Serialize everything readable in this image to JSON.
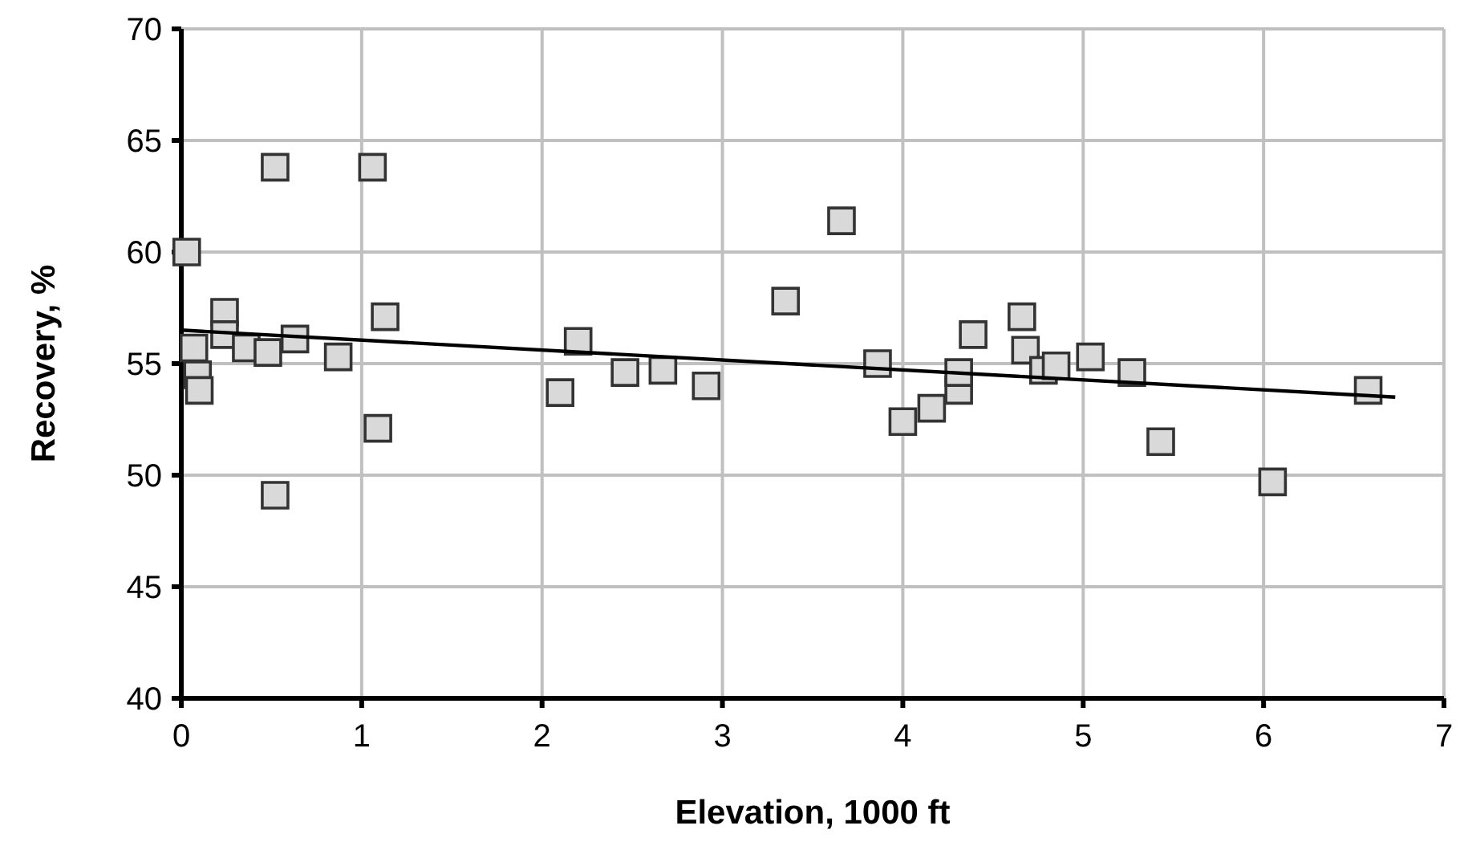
{
  "chart_data": {
    "type": "scatter",
    "xlabel": "Elevation, 1000 ft",
    "ylabel": "Recovery, %",
    "xlim": [
      0,
      7
    ],
    "xticks": [
      0,
      1,
      2,
      3,
      4,
      5,
      6,
      7
    ],
    "ylim": [
      40,
      70
    ],
    "yticks": [
      40,
      45,
      50,
      55,
      60,
      65,
      70
    ],
    "grid": true,
    "marker": "square",
    "series": [
      {
        "color": "#d9d9d9",
        "x": [
          0.03,
          0.07,
          0.09,
          0.1,
          0.24,
          0.24,
          0.36,
          0.48,
          0.52,
          0.52,
          0.63,
          0.87,
          1.06,
          1.09,
          1.13,
          2.1,
          2.2,
          2.46,
          2.67,
          2.91,
          3.35,
          3.66,
          3.86,
          4.0,
          4.16,
          4.31,
          4.31,
          4.39,
          4.66,
          4.68,
          4.78,
          4.85,
          5.04,
          5.27,
          5.43,
          6.05,
          6.58
        ],
        "values": [
          60.0,
          55.7,
          54.5,
          53.8,
          57.3,
          56.3,
          55.7,
          55.5,
          63.8,
          49.1,
          56.1,
          55.3,
          63.8,
          52.1,
          57.1,
          53.7,
          56.0,
          54.6,
          54.7,
          54.0,
          57.8,
          61.4,
          55.0,
          52.4,
          53.0,
          53.8,
          54.6,
          56.3,
          57.1,
          55.6,
          54.7,
          54.9,
          55.3,
          54.6,
          51.5,
          49.7,
          53.8
        ]
      },
      {
        "type": "line",
        "color": "#000000",
        "marker": "none",
        "x": [
          0,
          6.73
        ],
        "values": [
          56.5,
          53.5
        ]
      }
    ]
  }
}
